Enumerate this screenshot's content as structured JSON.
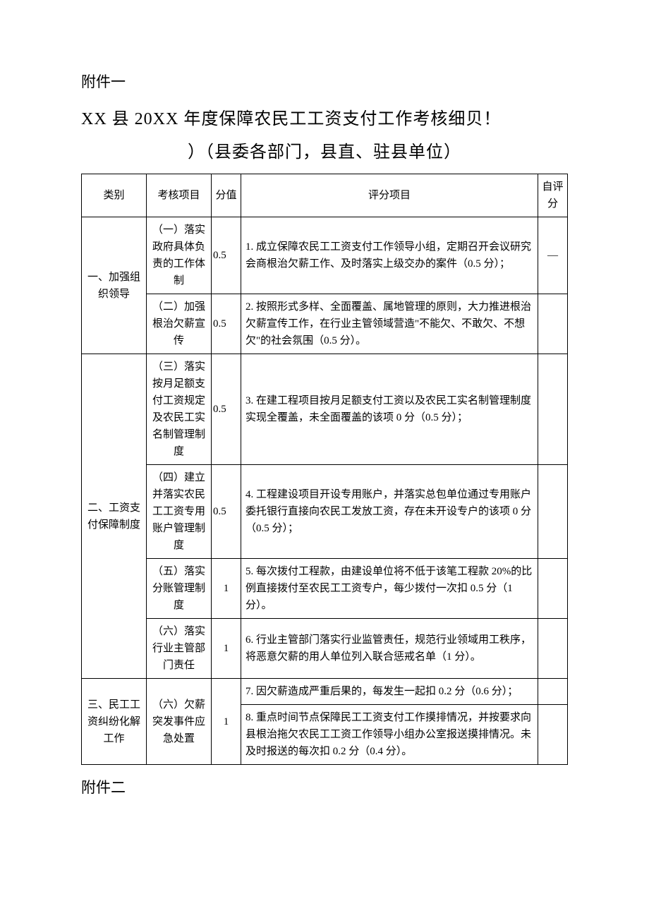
{
  "attachment_top": "附件一",
  "title_line1": "XX 县 20XX 年度保障农民工工资支付工作考核细贝！",
  "title_line2": "）（县委各部门，县直、驻县单位）",
  "headers": {
    "category": "类别",
    "item": "考核项目",
    "score": "分值",
    "criteria": "评分项目",
    "self": "自评分"
  },
  "rows": [
    {
      "category": "一、加强组织领导",
      "category_rowspan": 2,
      "item": "（一）落实政府具体负责的工作体制",
      "score": "0.5",
      "score_align": "left",
      "criteria": "1. 成立保障农民工工资支付工作领导小组，定期召开会议研究会商根治欠薪工作、及时落实上级交办的案件（0.5 分）；",
      "self": "—"
    },
    {
      "item": "（二）加强根治欠薪宣传",
      "score": "0.5",
      "score_align": "left",
      "criteria": "2. 按照形式多样、全面覆盖、属地管理的原则，大力推进根治欠薪宣传工作，在行业主管领域营造\"不能欠、不敢欠、不想欠\"的社会氛围（0.5 分）。",
      "self": ""
    },
    {
      "category": "二、工资支付保障制度",
      "category_rowspan": 4,
      "item": "（三）落实按月足额支付工资规定及农民工实名制管理制度",
      "score": "0.5",
      "score_align": "left",
      "criteria": "3. 在建工程项目按月足额支付工资以及农民工实名制管理制度实现全覆盖，未全面覆盖的该项 0 分（0.5 分）；",
      "self": ""
    },
    {
      "item": "（四）建立并落实农民工工资专用账户管理制度",
      "score": "0.5",
      "score_align": "left",
      "criteria": "4. 工程建设项目开设专用账户，并落实总包单位通过专用账户委托银行直接向农民工发放工资，存在未开设专户的该项 0 分（0.5 分）；",
      "self": ""
    },
    {
      "item": "（五）落实分账管理制度",
      "score": "1",
      "score_align": "center",
      "criteria": "5. 每次拨付工程款，由建设单位将不低于该笔工程款 20%的比例直接拨付至农民工工资专户，每少拨付一次扣 0.5 分（1 分）。",
      "self": ""
    },
    {
      "item": "（六）落实行业主管部门责任",
      "score": "1",
      "score_align": "center",
      "criteria": "6. 行业主管部门落实行业监管责任，规范行业领域用工秩序，将恶意欠薪的用人单位列入联合惩戒名单（1 分）。",
      "self": ""
    },
    {
      "category": "三、民工工资纠纷化解工作",
      "category_rowspan": 2,
      "item": "（六）欠薪突发事件应急处置",
      "item_rowspan": 2,
      "score": "1",
      "score_rowspan": 2,
      "score_align": "center",
      "criteria": "7. 因欠薪造成严重后果的，每发生一起扣 0.2 分（0.6 分）；",
      "self": ""
    },
    {
      "criteria": "8. 重点时间节点保障民工工资支付工作摸排情况，并按要求向县根治拖欠农民工工资工作领导小组办公室报送摸排情况。未及时报送的每次扣 0.2 分（0.4 分）。",
      "self": ""
    }
  ],
  "attachment_bottom": "附件二"
}
